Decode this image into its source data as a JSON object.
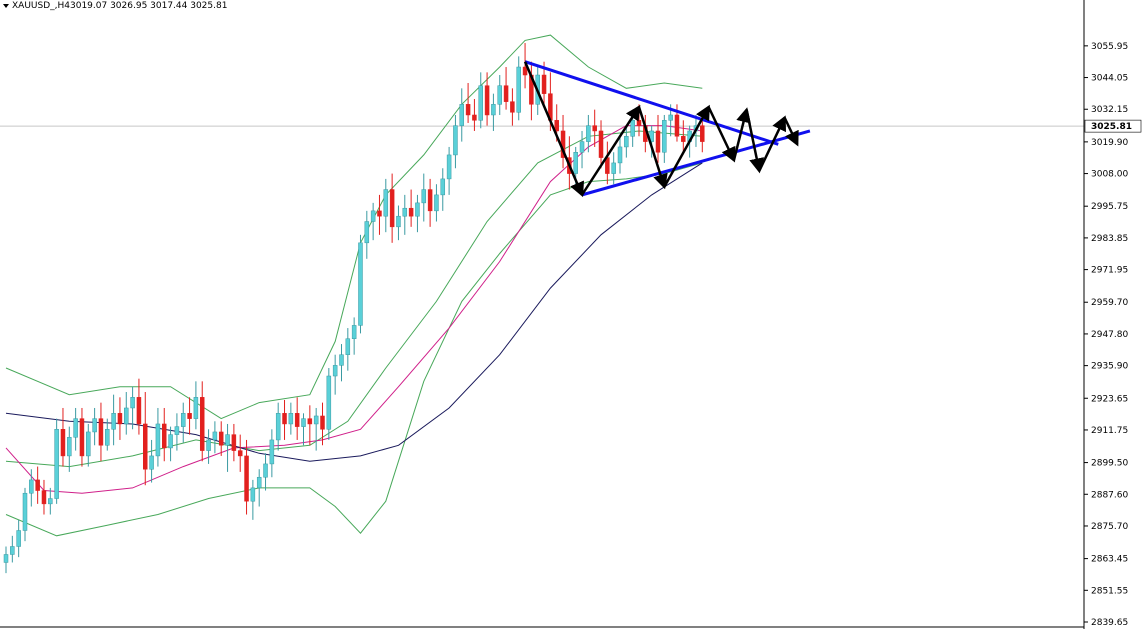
{
  "header": {
    "symbol": "XAUUSD_,H4",
    "ohlc": "3019.07 3026.95 3017.44 3025.81"
  },
  "colors": {
    "background": "#ffffff",
    "bull_candle": "#5ad0d8",
    "bear_candle": "#e2201e",
    "bollinger": "#48a85a",
    "ma_mid": "#d0208a",
    "ma_long": "#1a1a5c",
    "triangle": "#1010ee",
    "path_arrows": "#000000",
    "price_line": "#c8c8c8",
    "current_label_bg": "#ffffff"
  },
  "chart_data": {
    "type": "candlestick",
    "ylim": [
      2839.65,
      3061.9
    ],
    "yticks": [
      "3055.95",
      "3044.05",
      "3032.15",
      "3019.90",
      "3008.00",
      "2995.75",
      "2983.85",
      "2971.95",
      "2959.70",
      "2947.80",
      "2935.90",
      "2923.65",
      "2911.75",
      "2899.50",
      "2887.60",
      "2875.70",
      "2863.45",
      "2851.55",
      "2839.65"
    ],
    "current_price": "3025.81",
    "candles": [
      [
        2862,
        2868,
        2858,
        2865
      ],
      [
        2865,
        2872,
        2862,
        2868
      ],
      [
        2868,
        2878,
        2864,
        2874
      ],
      [
        2874,
        2890,
        2870,
        2888
      ],
      [
        2888,
        2897,
        2883,
        2893
      ],
      [
        2893,
        2898,
        2884,
        2889
      ],
      [
        2889,
        2893,
        2880,
        2884
      ],
      [
        2884,
        2890,
        2880,
        2886
      ],
      [
        2886,
        2916,
        2884,
        2912
      ],
      [
        2912,
        2920,
        2898,
        2902
      ],
      [
        2902,
        2913,
        2896,
        2909
      ],
      [
        2909,
        2920,
        2904,
        2916
      ],
      [
        2916,
        2920,
        2898,
        2902
      ],
      [
        2902,
        2914,
        2898,
        2911
      ],
      [
        2911,
        2920,
        2906,
        2916
      ],
      [
        2916,
        2922,
        2900,
        2906
      ],
      [
        2906,
        2916,
        2904,
        2912
      ],
      [
        2912,
        2925,
        2906,
        2918
      ],
      [
        2918,
        2924,
        2908,
        2914
      ],
      [
        2914,
        2926,
        2910,
        2920
      ],
      [
        2920,
        2928,
        2912,
        2924
      ],
      [
        2924,
        2931,
        2910,
        2914
      ],
      [
        2914,
        2926,
        2891,
        2897
      ],
      [
        2897,
        2908,
        2892,
        2902
      ],
      [
        2902,
        2920,
        2898,
        2914
      ],
      [
        2914,
        2920,
        2900,
        2905
      ],
      [
        2905,
        2913,
        2900,
        2910
      ],
      [
        2910,
        2918,
        2904,
        2913
      ],
      [
        2913,
        2922,
        2907,
        2918
      ],
      [
        2918,
        2924,
        2910,
        2916
      ],
      [
        2916,
        2930,
        2912,
        2924
      ],
      [
        2924,
        2930,
        2900,
        2904
      ],
      [
        2904,
        2912,
        2899,
        2908
      ],
      [
        2908,
        2915,
        2903,
        2911
      ],
      [
        2911,
        2915,
        2902,
        2906
      ],
      [
        2906,
        2914,
        2896,
        2910
      ],
      [
        2910,
        2914,
        2900,
        2904
      ],
      [
        2904,
        2910,
        2896,
        2902
      ],
      [
        2902,
        2908,
        2880,
        2885
      ],
      [
        2885,
        2893,
        2878,
        2890
      ],
      [
        2890,
        2897,
        2883,
        2894
      ],
      [
        2894,
        2903,
        2889,
        2899
      ],
      [
        2899,
        2912,
        2894,
        2908
      ],
      [
        2908,
        2922,
        2904,
        2918
      ],
      [
        2918,
        2923,
        2908,
        2914
      ],
      [
        2914,
        2922,
        2910,
        2918
      ],
      [
        2918,
        2924,
        2908,
        2913
      ],
      [
        2913,
        2918,
        2906,
        2916
      ],
      [
        2916,
        2921,
        2906,
        2914
      ],
      [
        2914,
        2920,
        2904,
        2917
      ],
      [
        2917,
        2922,
        2906,
        2912
      ],
      [
        2912,
        2935,
        2908,
        2932
      ],
      [
        2932,
        2940,
        2925,
        2936
      ],
      [
        2936,
        2944,
        2930,
        2940
      ],
      [
        2940,
        2950,
        2934,
        2946
      ],
      [
        2946,
        2954,
        2940,
        2951
      ],
      [
        2951,
        2985,
        2948,
        2982
      ],
      [
        2982,
        2994,
        2976,
        2990
      ],
      [
        2990,
        2997,
        2983,
        2994
      ],
      [
        2994,
        3000,
        2985,
        2992
      ],
      [
        2992,
        3006,
        2986,
        3002
      ],
      [
        3002,
        3008,
        2982,
        2988
      ],
      [
        2988,
        2996,
        2983,
        2992
      ],
      [
        2992,
        3000,
        2985,
        2995
      ],
      [
        2995,
        3002,
        2988,
        2992
      ],
      [
        2992,
        3000,
        2986,
        2997
      ],
      [
        2997,
        3008,
        2990,
        3002
      ],
      [
        3002,
        3006,
        2988,
        2994
      ],
      [
        2994,
        3004,
        2990,
        3000
      ],
      [
        3000,
        3010,
        2994,
        3006
      ],
      [
        3006,
        3018,
        3000,
        3015
      ],
      [
        3015,
        3030,
        3010,
        3026
      ],
      [
        3026,
        3040,
        3020,
        3034
      ],
      [
        3034,
        3042,
        3027,
        3030
      ],
      [
        3030,
        3036,
        3024,
        3028
      ],
      [
        3028,
        3046,
        3025,
        3041
      ],
      [
        3041,
        3046,
        3026,
        3030
      ],
      [
        3030,
        3038,
        3024,
        3034
      ],
      [
        3034,
        3045,
        3030,
        3041
      ],
      [
        3041,
        3048,
        3032,
        3035
      ],
      [
        3035,
        3040,
        3026,
        3031
      ],
      [
        3031,
        3052,
        3028,
        3048
      ],
      [
        3048,
        3057,
        3040,
        3045
      ],
      [
        3045,
        3050,
        3028,
        3034
      ],
      [
        3034,
        3048,
        3030,
        3045
      ],
      [
        3045,
        3050,
        3034,
        3038
      ],
      [
        3038,
        3046,
        3024,
        3028
      ],
      [
        3028,
        3034,
        3020,
        3024
      ],
      [
        3024,
        3030,
        3010,
        3014
      ],
      [
        3014,
        3022,
        3002,
        3008
      ],
      [
        3008,
        3018,
        3004,
        3016
      ],
      [
        3016,
        3024,
        3010,
        3020
      ],
      [
        3020,
        3030,
        3016,
        3026
      ],
      [
        3026,
        3032,
        3018,
        3024
      ],
      [
        3024,
        3028,
        3010,
        3014
      ],
      [
        3014,
        3020,
        3004,
        3008
      ],
      [
        3008,
        3016,
        3004,
        3012
      ],
      [
        3012,
        3022,
        3008,
        3018
      ],
      [
        3018,
        3026,
        3014,
        3022
      ],
      [
        3022,
        3032,
        3018,
        3028
      ],
      [
        3028,
        3034,
        3022,
        3026
      ],
      [
        3026,
        3030,
        3016,
        3020
      ],
      [
        3020,
        3026,
        3014,
        3024
      ],
      [
        3024,
        3030,
        3012,
        3016
      ],
      [
        3016,
        3030,
        3012,
        3028
      ],
      [
        3028,
        3034,
        3022,
        3030
      ],
      [
        3030,
        3034,
        3020,
        3022
      ],
      [
        3022,
        3028,
        3016,
        3020
      ],
      [
        3020,
        3026,
        3014,
        3024
      ],
      [
        3024,
        3030,
        3018,
        3026
      ],
      [
        3026,
        3028,
        3016,
        3020
      ]
    ],
    "bollinger_upper": [
      [
        0,
        2935
      ],
      [
        10,
        2925
      ],
      [
        18,
        2928
      ],
      [
        26,
        2928
      ],
      [
        34,
        2916
      ],
      [
        40,
        2922
      ],
      [
        48,
        2925
      ],
      [
        52,
        2945
      ],
      [
        56,
        2982
      ],
      [
        60,
        3000
      ],
      [
        66,
        3015
      ],
      [
        72,
        3034
      ],
      [
        78,
        3048
      ],
      [
        82,
        3058
      ],
      [
        86,
        3060
      ],
      [
        92,
        3048
      ],
      [
        98,
        3040
      ],
      [
        104,
        3042
      ],
      [
        110,
        3040
      ]
    ],
    "bollinger_lower": [
      [
        0,
        2880
      ],
      [
        8,
        2872
      ],
      [
        16,
        2876
      ],
      [
        24,
        2880
      ],
      [
        32,
        2886
      ],
      [
        40,
        2890
      ],
      [
        48,
        2890
      ],
      [
        52,
        2883
      ],
      [
        56,
        2873
      ],
      [
        60,
        2885
      ],
      [
        66,
        2930
      ],
      [
        72,
        2960
      ],
      [
        78,
        2978
      ],
      [
        86,
        3000
      ],
      [
        92,
        3005
      ],
      [
        98,
        3006
      ],
      [
        104,
        3008
      ],
      [
        110,
        3012
      ]
    ],
    "bollinger_mid": [
      [
        0,
        2900
      ],
      [
        10,
        2898
      ],
      [
        20,
        2902
      ],
      [
        30,
        2908
      ],
      [
        40,
        2904
      ],
      [
        48,
        2906
      ],
      [
        54,
        2915
      ],
      [
        60,
        2935
      ],
      [
        68,
        2960
      ],
      [
        76,
        2990
      ],
      [
        84,
        3012
      ],
      [
        92,
        3022
      ],
      [
        100,
        3024
      ],
      [
        110,
        3022
      ]
    ],
    "ma_mid": [
      [
        0,
        2905
      ],
      [
        6,
        2889
      ],
      [
        12,
        2888
      ],
      [
        20,
        2890
      ],
      [
        28,
        2898
      ],
      [
        36,
        2905
      ],
      [
        44,
        2906
      ],
      [
        50,
        2908
      ],
      [
        56,
        2912
      ],
      [
        62,
        2928
      ],
      [
        70,
        2950
      ],
      [
        78,
        2975
      ],
      [
        86,
        3005
      ],
      [
        92,
        3018
      ],
      [
        98,
        3026
      ],
      [
        104,
        3026
      ],
      [
        110,
        3024
      ]
    ],
    "ma_long": [
      [
        0,
        2918
      ],
      [
        10,
        2915
      ],
      [
        20,
        2914
      ],
      [
        30,
        2910
      ],
      [
        40,
        2903
      ],
      [
        48,
        2900
      ],
      [
        56,
        2902
      ],
      [
        62,
        2906
      ],
      [
        70,
        2920
      ],
      [
        78,
        2940
      ],
      [
        86,
        2965
      ],
      [
        94,
        2985
      ],
      [
        102,
        3000
      ],
      [
        110,
        3012
      ]
    ],
    "triangle_upper": [
      [
        82,
        3050
      ],
      [
        122,
        3019
      ]
    ],
    "triangle_lower": [
      [
        91,
        3000
      ],
      [
        127,
        3024
      ]
    ],
    "zigzag": [
      [
        82,
        3050
      ],
      [
        91,
        3000
      ],
      [
        100,
        3033
      ],
      [
        104,
        3003
      ],
      [
        111,
        3033
      ],
      [
        115,
        3013
      ],
      [
        117,
        3032
      ],
      [
        119,
        3009
      ],
      [
        123,
        3029
      ],
      [
        125,
        3019
      ]
    ]
  }
}
